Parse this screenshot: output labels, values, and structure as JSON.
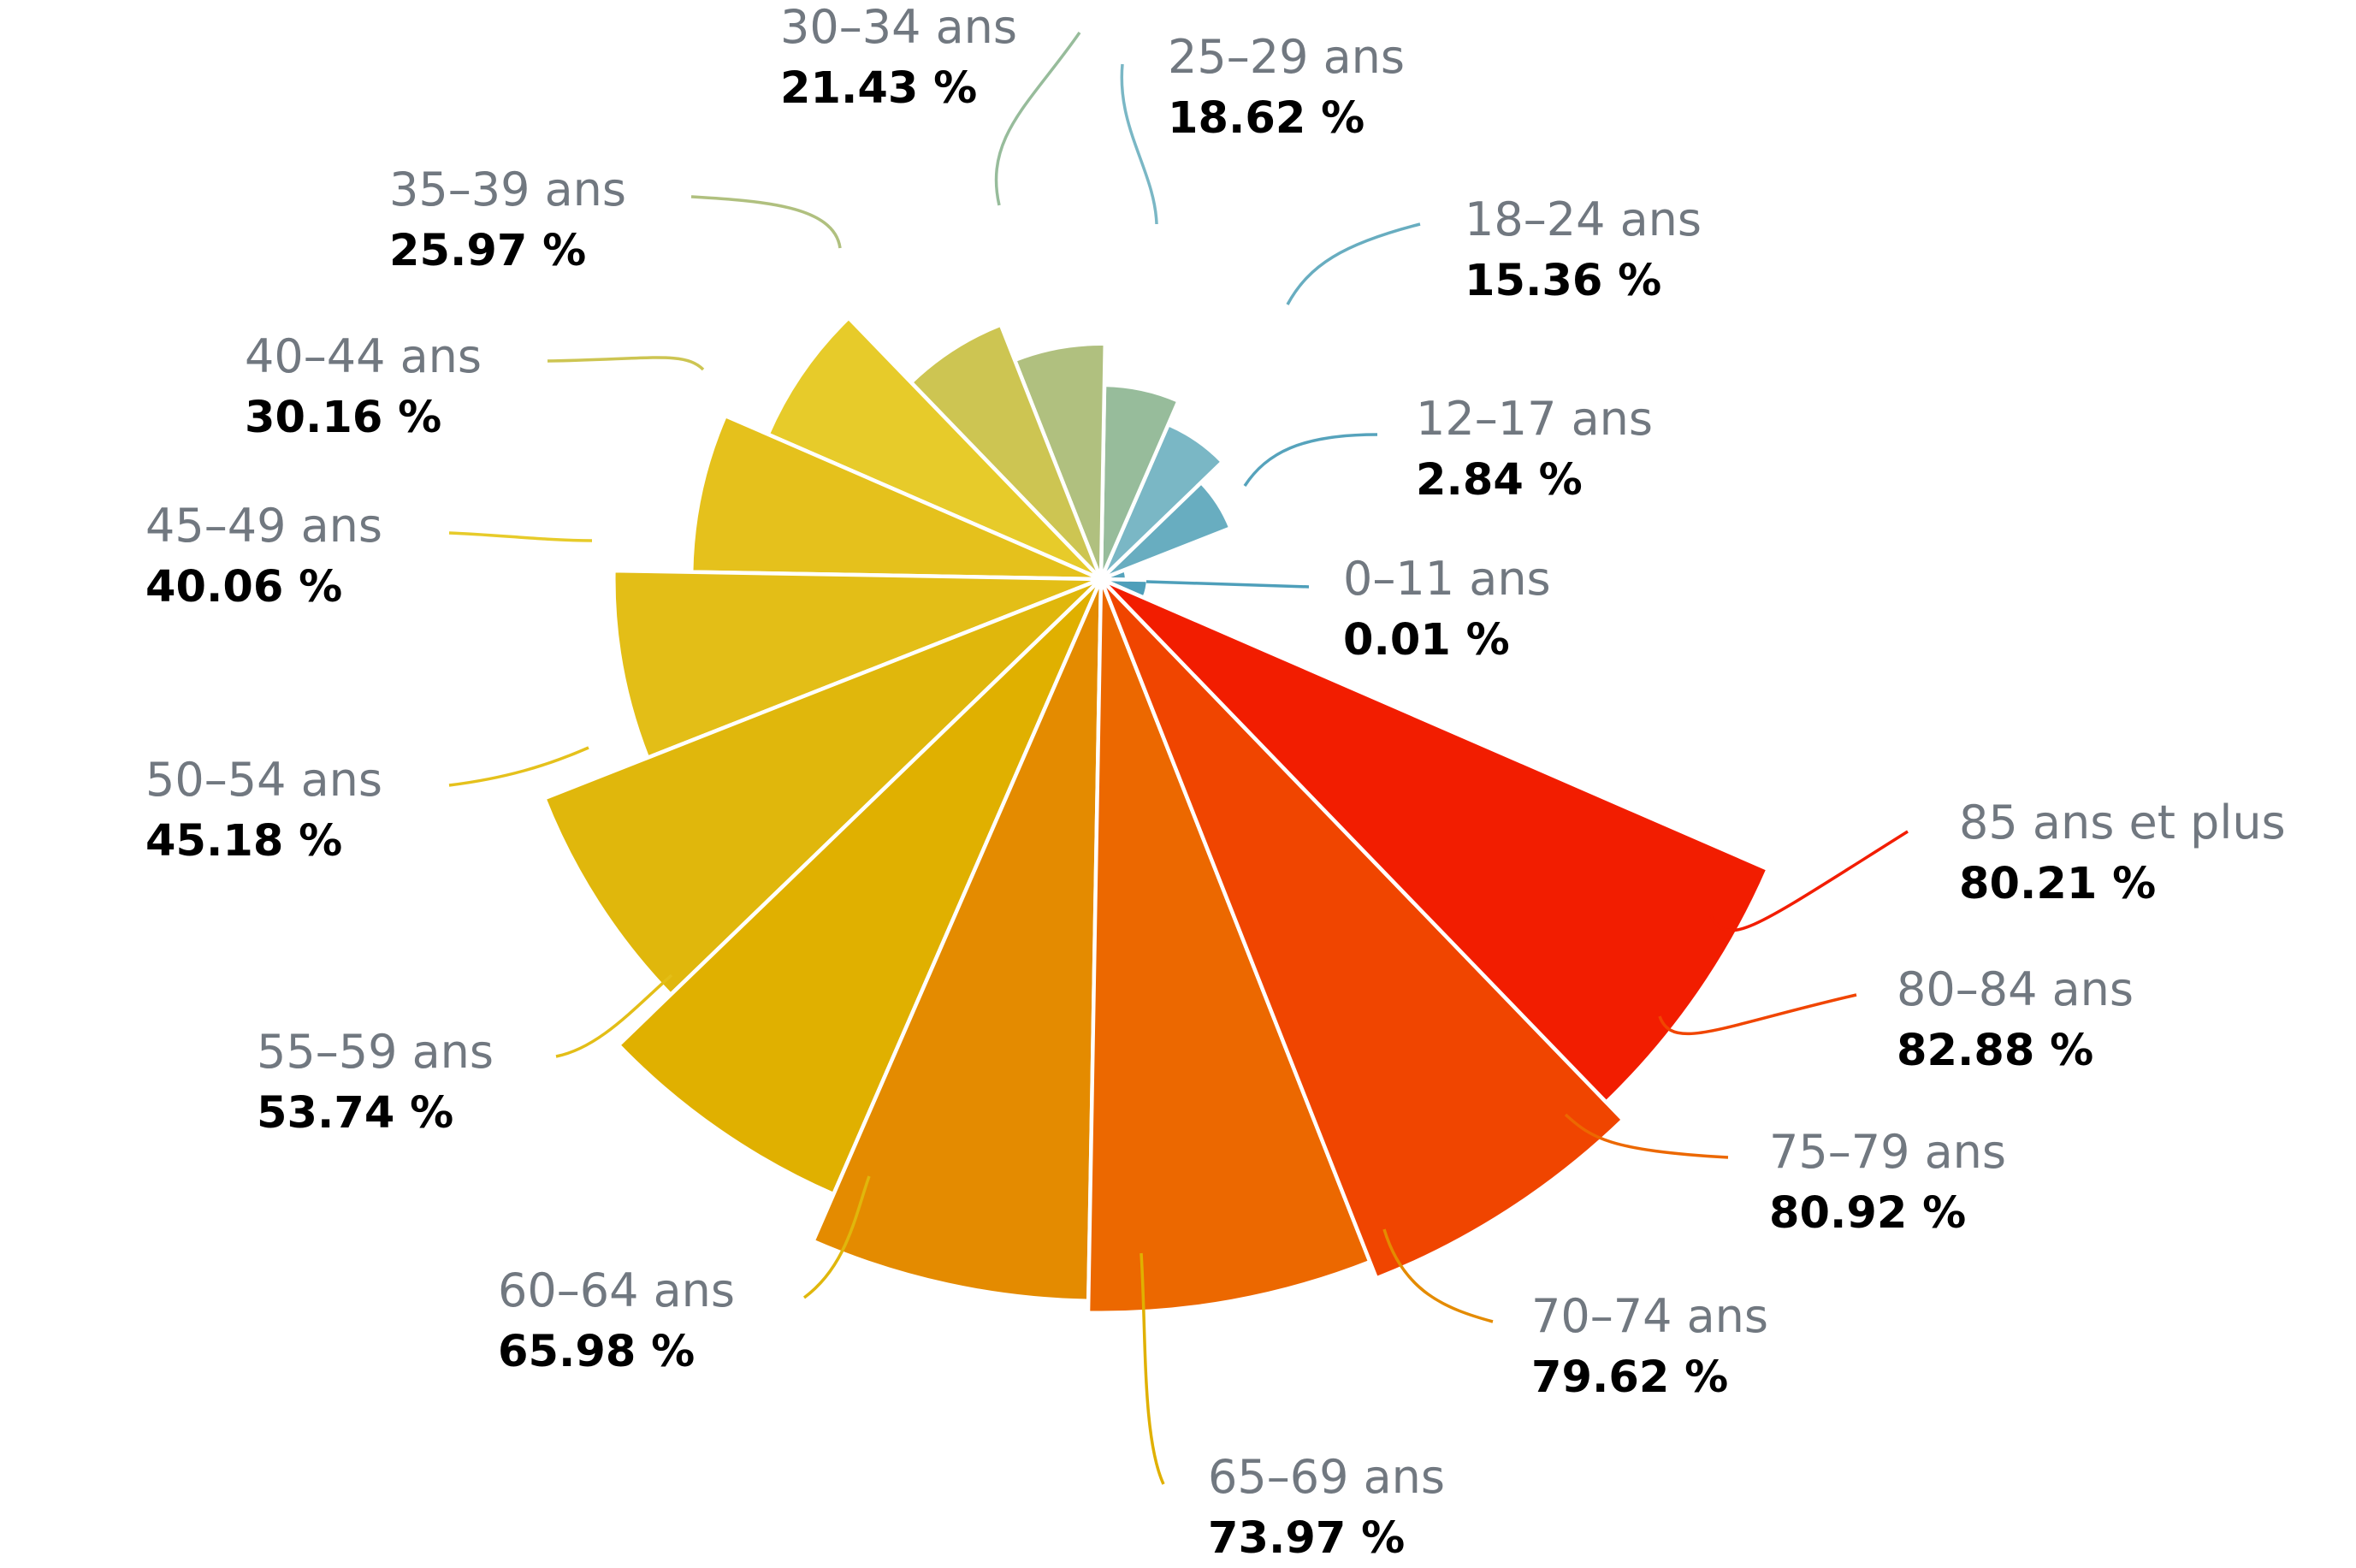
{
  "chart_data": {
    "type": "pie",
    "variant": "polar-area",
    "value_suffix": " %",
    "rmax": 100,
    "series": [
      {
        "label": "0–11 ans",
        "value": 0.01,
        "display": "0.01 %",
        "color": "#4e9fba"
      },
      {
        "label": "12–17 ans",
        "value": 2.84,
        "display": "2.84 %",
        "color": "#56a3bc"
      },
      {
        "label": "18–24 ans",
        "value": 15.36,
        "display": "15.36 %",
        "color": "#68adc0"
      },
      {
        "label": "25–29 ans",
        "value": 18.62,
        "display": "18.62 %",
        "color": "#7ab7c5"
      },
      {
        "label": "30–34 ans",
        "value": 21.43,
        "display": "21.43 %",
        "color": "#97bc9b"
      },
      {
        "label": "35–39 ans",
        "value": 25.97,
        "display": "25.97 %",
        "color": "#b0c07f"
      },
      {
        "label": "40–44 ans",
        "value": 30.16,
        "display": "30.16 %",
        "color": "#cdc552"
      },
      {
        "label": "45–49 ans",
        "value": 40.06,
        "display": "40.06 %",
        "color": "#e7cb2a"
      },
      {
        "label": "50–54 ans",
        "value": 45.18,
        "display": "45.18 %",
        "color": "#e5c11c"
      },
      {
        "label": "55–59 ans",
        "value": 53.74,
        "display": "53.74 %",
        "color": "#e3be17"
      },
      {
        "label": "60–64 ans",
        "value": 65.98,
        "display": "65.98 %",
        "color": "#e0b70c"
      },
      {
        "label": "65–69 ans",
        "value": 73.97,
        "display": "73.97 %",
        "color": "#e0b000"
      },
      {
        "label": "70–74 ans",
        "value": 79.62,
        "display": "79.62 %",
        "color": "#e48b00"
      },
      {
        "label": "75–79 ans",
        "value": 80.92,
        "display": "80.92 %",
        "color": "#ec6800"
      },
      {
        "label": "80–84 ans",
        "value": 82.88,
        "display": "82.88 %",
        "color": "#f04500"
      },
      {
        "label": "85 ans et plus",
        "value": 80.21,
        "display": "80.21 %",
        "color": "#f21d00"
      }
    ]
  }
}
